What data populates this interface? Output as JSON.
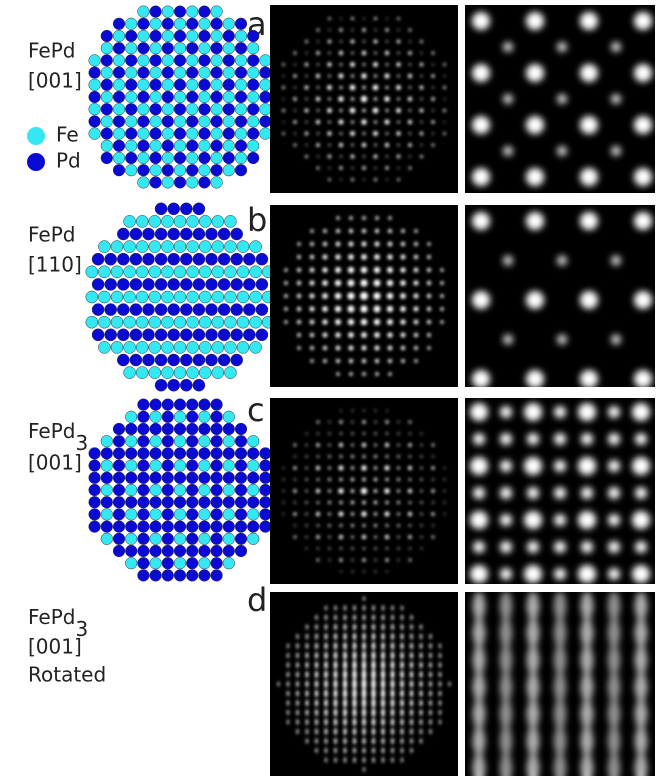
{
  "legend": [
    {
      "label": "Fe",
      "color": "#33e8f2"
    },
    {
      "label": "Pd",
      "color": "#0a0ad4"
    }
  ],
  "panels": [
    {
      "letter": "a",
      "material": "FePd",
      "direction": "[001]"
    },
    {
      "letter": "b",
      "material": "FePd",
      "direction": "[110]"
    },
    {
      "letter": "c",
      "material": "FePd",
      "material_subscript": "3",
      "direction": "[001]"
    },
    {
      "letter": "d",
      "material": "FePd",
      "material_subscript": "3",
      "direction": "[001]",
      "note": "Rotated"
    }
  ]
}
